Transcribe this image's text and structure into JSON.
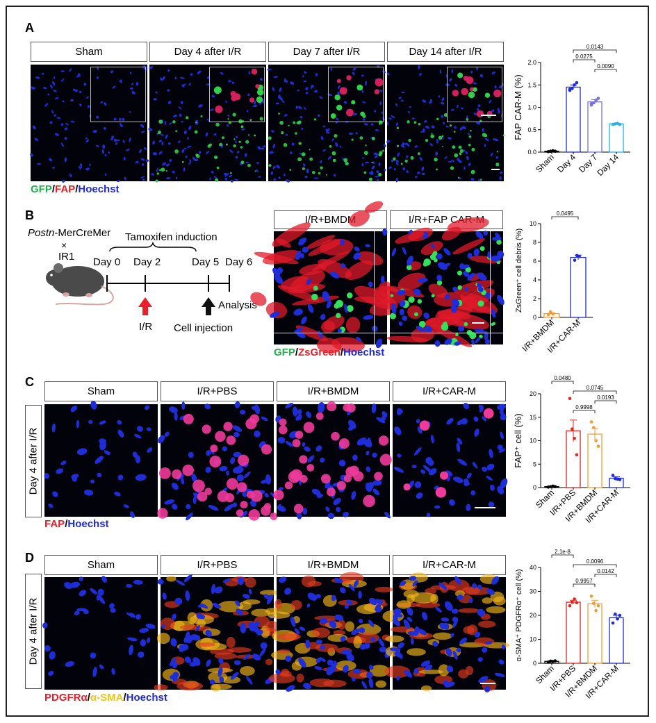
{
  "panels": {
    "A": "A",
    "B": "B",
    "C": "C",
    "D": "D"
  },
  "A": {
    "headers": [
      "Sham",
      "Day 4 after I/R",
      "Day 7 after I/R",
      "Day 14 after I/R"
    ],
    "legend": {
      "gfp": "GFP",
      "fap": "FAP",
      "hoechst": "Hoechst",
      "sep": "/"
    }
  },
  "B": {
    "scheme": {
      "strain_italic": "Postn",
      "strain_rest": "-MerCreMer",
      "cross": "×",
      "ir1": "IR1",
      "induction": "Tamoxifen induction",
      "days": [
        "Day 0",
        "Day 2",
        "Day 5",
        "Day 6"
      ],
      "ir": "I/R",
      "injection": "Cell injection",
      "analysis": "Analysis"
    },
    "headers": [
      "I/R+BMDM",
      "I/R+FAP CAR-M"
    ],
    "legend": {
      "gfp": "GFP",
      "zs": "ZsGreen",
      "hoechst": "Hoechst",
      "sep": "/"
    }
  },
  "C": {
    "side": "Day 4 after I/R",
    "headers": [
      "Sham",
      "I/R+PBS",
      "I/R+BMDM",
      "I/R+CAR-M"
    ],
    "legend": {
      "fap": "FAP",
      "hoechst": "Hoechst",
      "sep": "/"
    }
  },
  "D": {
    "side": "Day 4 after I/R",
    "headers": [
      "Sham",
      "I/R+PBS",
      "I/R+BMDM",
      "I/R+CAR-M"
    ],
    "legend": {
      "pdg": "PDGFRα",
      "sma": "α-SMA",
      "hoechst": "Hoechst",
      "sep": "/"
    }
  },
  "colors": {
    "sham": "#000000",
    "pbs": "#e0241f",
    "bmdm": "#f39c34",
    "carm": "#1f2ad6",
    "day4": "#1f2ad6",
    "day7": "#7a6fe0",
    "day14": "#27b0e6"
  },
  "chart_data": [
    {
      "type": "bar",
      "panel": "A",
      "categories": [
        "Sham",
        "Day 4",
        "Day 7",
        "Day 14"
      ],
      "values": [
        0.02,
        1.45,
        1.12,
        0.63
      ],
      "points": [
        [
          0.01,
          0.02,
          0.03,
          0.02
        ],
        [
          1.38,
          1.42,
          1.5,
          1.55,
          1.4
        ],
        [
          1.05,
          1.1,
          1.16,
          1.2,
          1.08
        ],
        [
          0.62,
          0.63,
          0.64,
          0.62
        ]
      ],
      "errors": [
        0.005,
        0.05,
        0.05,
        0.01
      ],
      "ylabel": "FAP CAR-M (%)",
      "ylim": [
        0,
        2.0
      ],
      "yticks": [
        "0.0",
        "0.5",
        "1.0",
        "1.5",
        "2.0"
      ],
      "pvalues": [
        {
          "a": 1,
          "b": 3,
          "text": "0.0143"
        },
        {
          "a": 1,
          "b": 2,
          "text": "0.0275"
        },
        {
          "a": 2,
          "b": 3,
          "text": "0.0090"
        }
      ]
    },
    {
      "type": "bar",
      "panel": "B",
      "categories": [
        "I/R+BMDM",
        "I/R+CAR-M"
      ],
      "values": [
        0.4,
        6.4
      ],
      "points": [
        [
          0.3,
          0.6,
          0.35
        ],
        [
          6.1,
          6.6,
          6.5
        ]
      ],
      "errors": [
        0.1,
        0.25
      ],
      "ylabel": "ZsGreen⁺ cell debris (%)",
      "ylim": [
        0,
        10
      ],
      "yticks": [
        "0",
        "2",
        "4",
        "6",
        "8",
        "10"
      ],
      "pvalues": [
        {
          "a": 0,
          "b": 1,
          "text": "0.0495"
        }
      ]
    },
    {
      "type": "bar",
      "panel": "C",
      "categories": [
        "Sham",
        "I/R+PBS",
        "I/R+BMDM",
        "I/R+CAR-M"
      ],
      "values": [
        0.2,
        12.1,
        11.4,
        2.0
      ],
      "points": [
        [
          0.1,
          0.2,
          0.3,
          0.2
        ],
        [
          19.0,
          12.5,
          10.5,
          7.0
        ],
        [
          14.0,
          12.8,
          10.0,
          8.8
        ],
        [
          2.6,
          1.9,
          1.8,
          1.7
        ]
      ],
      "errors": [
        0.1,
        2.3,
        1.2,
        0.3
      ],
      "ylabel": "FAP⁺ cell (%)",
      "ylim": [
        0,
        20
      ],
      "yticks": [
        "0",
        "5",
        "10",
        "15",
        "20"
      ],
      "pvalues": [
        {
          "a": 0,
          "b": 1,
          "text": "0.0480"
        },
        {
          "a": 1,
          "b": 3,
          "text": "0.0745"
        },
        {
          "a": 2,
          "b": 3,
          "text": "0.0193"
        },
        {
          "a": 1,
          "b": 2,
          "text": "0.9998"
        }
      ]
    },
    {
      "type": "bar",
      "panel": "D",
      "categories": [
        "Sham",
        "I/R+PBS",
        "I/R+BMDM",
        "I/R+CAR-M"
      ],
      "values": [
        0.8,
        25.5,
        24.8,
        19.0
      ],
      "points": [
        [
          0.5,
          0.9,
          0.8,
          1.0
        ],
        [
          24.0,
          25.5,
          26.8,
          25.3
        ],
        [
          28.0,
          25.0,
          22.0,
          24.0
        ],
        [
          16.8,
          20.5,
          18.5,
          20.0
        ]
      ],
      "errors": [
        0.2,
        0.8,
        1.5,
        1.0
      ],
      "ylabel": "α-SMA⁺ PDGFRα⁺ cell (%)",
      "ylim": [
        0,
        40
      ],
      "yticks": [
        "0",
        "10",
        "20",
        "30",
        "40"
      ],
      "pvalues": [
        {
          "a": 0,
          "b": 1,
          "text": "2.1e-8"
        },
        {
          "a": 1,
          "b": 3,
          "text": "0.0096"
        },
        {
          "a": 2,
          "b": 3,
          "text": "0.0142"
        },
        {
          "a": 1,
          "b": 2,
          "text": "0.9957"
        }
      ]
    }
  ]
}
